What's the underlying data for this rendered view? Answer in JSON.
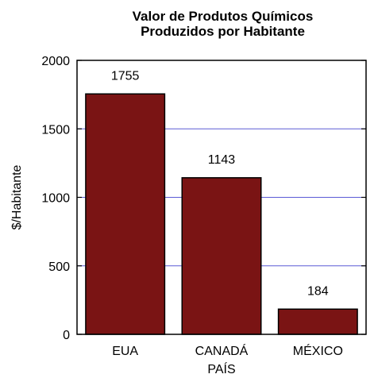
{
  "chart_data": {
    "type": "bar",
    "title_lines": [
      "Valor de Produtos Químicos",
      "Produzidos por Habitante"
    ],
    "xlabel": "PAÍS",
    "ylabel": "$/Habitante",
    "categories": [
      "EUA",
      "CANADÁ",
      "MÉXICO"
    ],
    "values": [
      1755,
      1143,
      184
    ],
    "value_labels": [
      "1755",
      "1143",
      "184"
    ],
    "ylim": [
      0,
      2000
    ],
    "yticks": [
      0,
      500,
      1000,
      1500,
      2000
    ],
    "ytick_labels": [
      "0",
      "500",
      "1000",
      "1500",
      "2000"
    ],
    "grid": "horizontal",
    "legend": "none",
    "colors": {
      "bar_fill": "#7a1414",
      "bar_stroke": "#000000",
      "gridline": "#5b5bd6",
      "axis": "#000000"
    }
  }
}
